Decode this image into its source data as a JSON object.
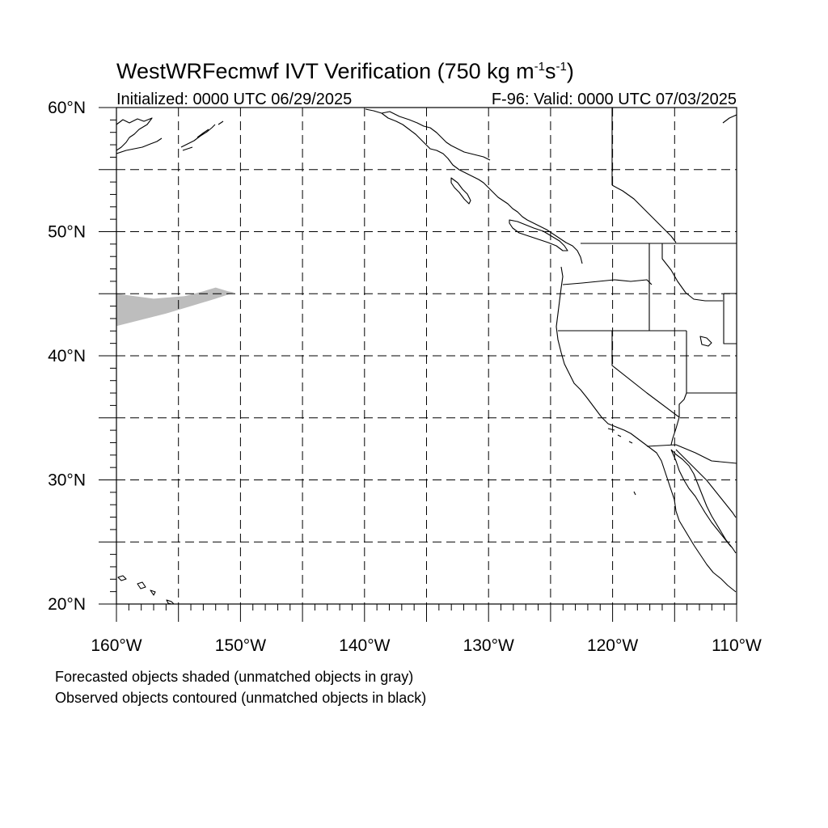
{
  "title": {
    "main": "WestWRFecmwf IVT Verification (750 kg m",
    "exp1": "-1",
    "mid": "s",
    "exp2": "-1",
    "close": ")"
  },
  "init_label": "Initialized: 0000 UTC 06/29/2025",
  "valid_label": "F-96: Valid: 0000 UTC 07/03/2025",
  "lat_ticks": [
    {
      "value": 60,
      "label": "60°N"
    },
    {
      "value": 50,
      "label": "50°N"
    },
    {
      "value": 40,
      "label": "40°N"
    },
    {
      "value": 30,
      "label": "30°N"
    },
    {
      "value": 20,
      "label": "20°N"
    }
  ],
  "lon_ticks": [
    {
      "value": -160,
      "label": "160°W"
    },
    {
      "value": -150,
      "label": "150°W"
    },
    {
      "value": -140,
      "label": "140°W"
    },
    {
      "value": -130,
      "label": "130°W"
    },
    {
      "value": -120,
      "label": "120°W"
    },
    {
      "value": -110,
      "label": "110°W"
    }
  ],
  "extent": {
    "lon_min": -160,
    "lon_max": -110,
    "lat_min": 20,
    "lat_max": 60
  },
  "grid_spacing_deg": 5,
  "forecast_object": {
    "status": "unmatched",
    "color": "#bdbdbd",
    "outline": [
      [
        -160,
        45
      ],
      [
        -157,
        44.6
      ],
      [
        -154.5,
        44.8
      ],
      [
        -153,
        45.2
      ],
      [
        -152,
        45.5
      ],
      [
        -151,
        45.2
      ],
      [
        -150.5,
        45.1
      ],
      [
        -152,
        44.6
      ],
      [
        -154,
        44
      ],
      [
        -156,
        43.4
      ],
      [
        -158,
        42.9
      ],
      [
        -160,
        42.4
      ]
    ]
  },
  "captions": [
    "Forecasted objects shaded (unmatched objects in gray)",
    "Observed objects contoured (unmatched objects in black)"
  ]
}
